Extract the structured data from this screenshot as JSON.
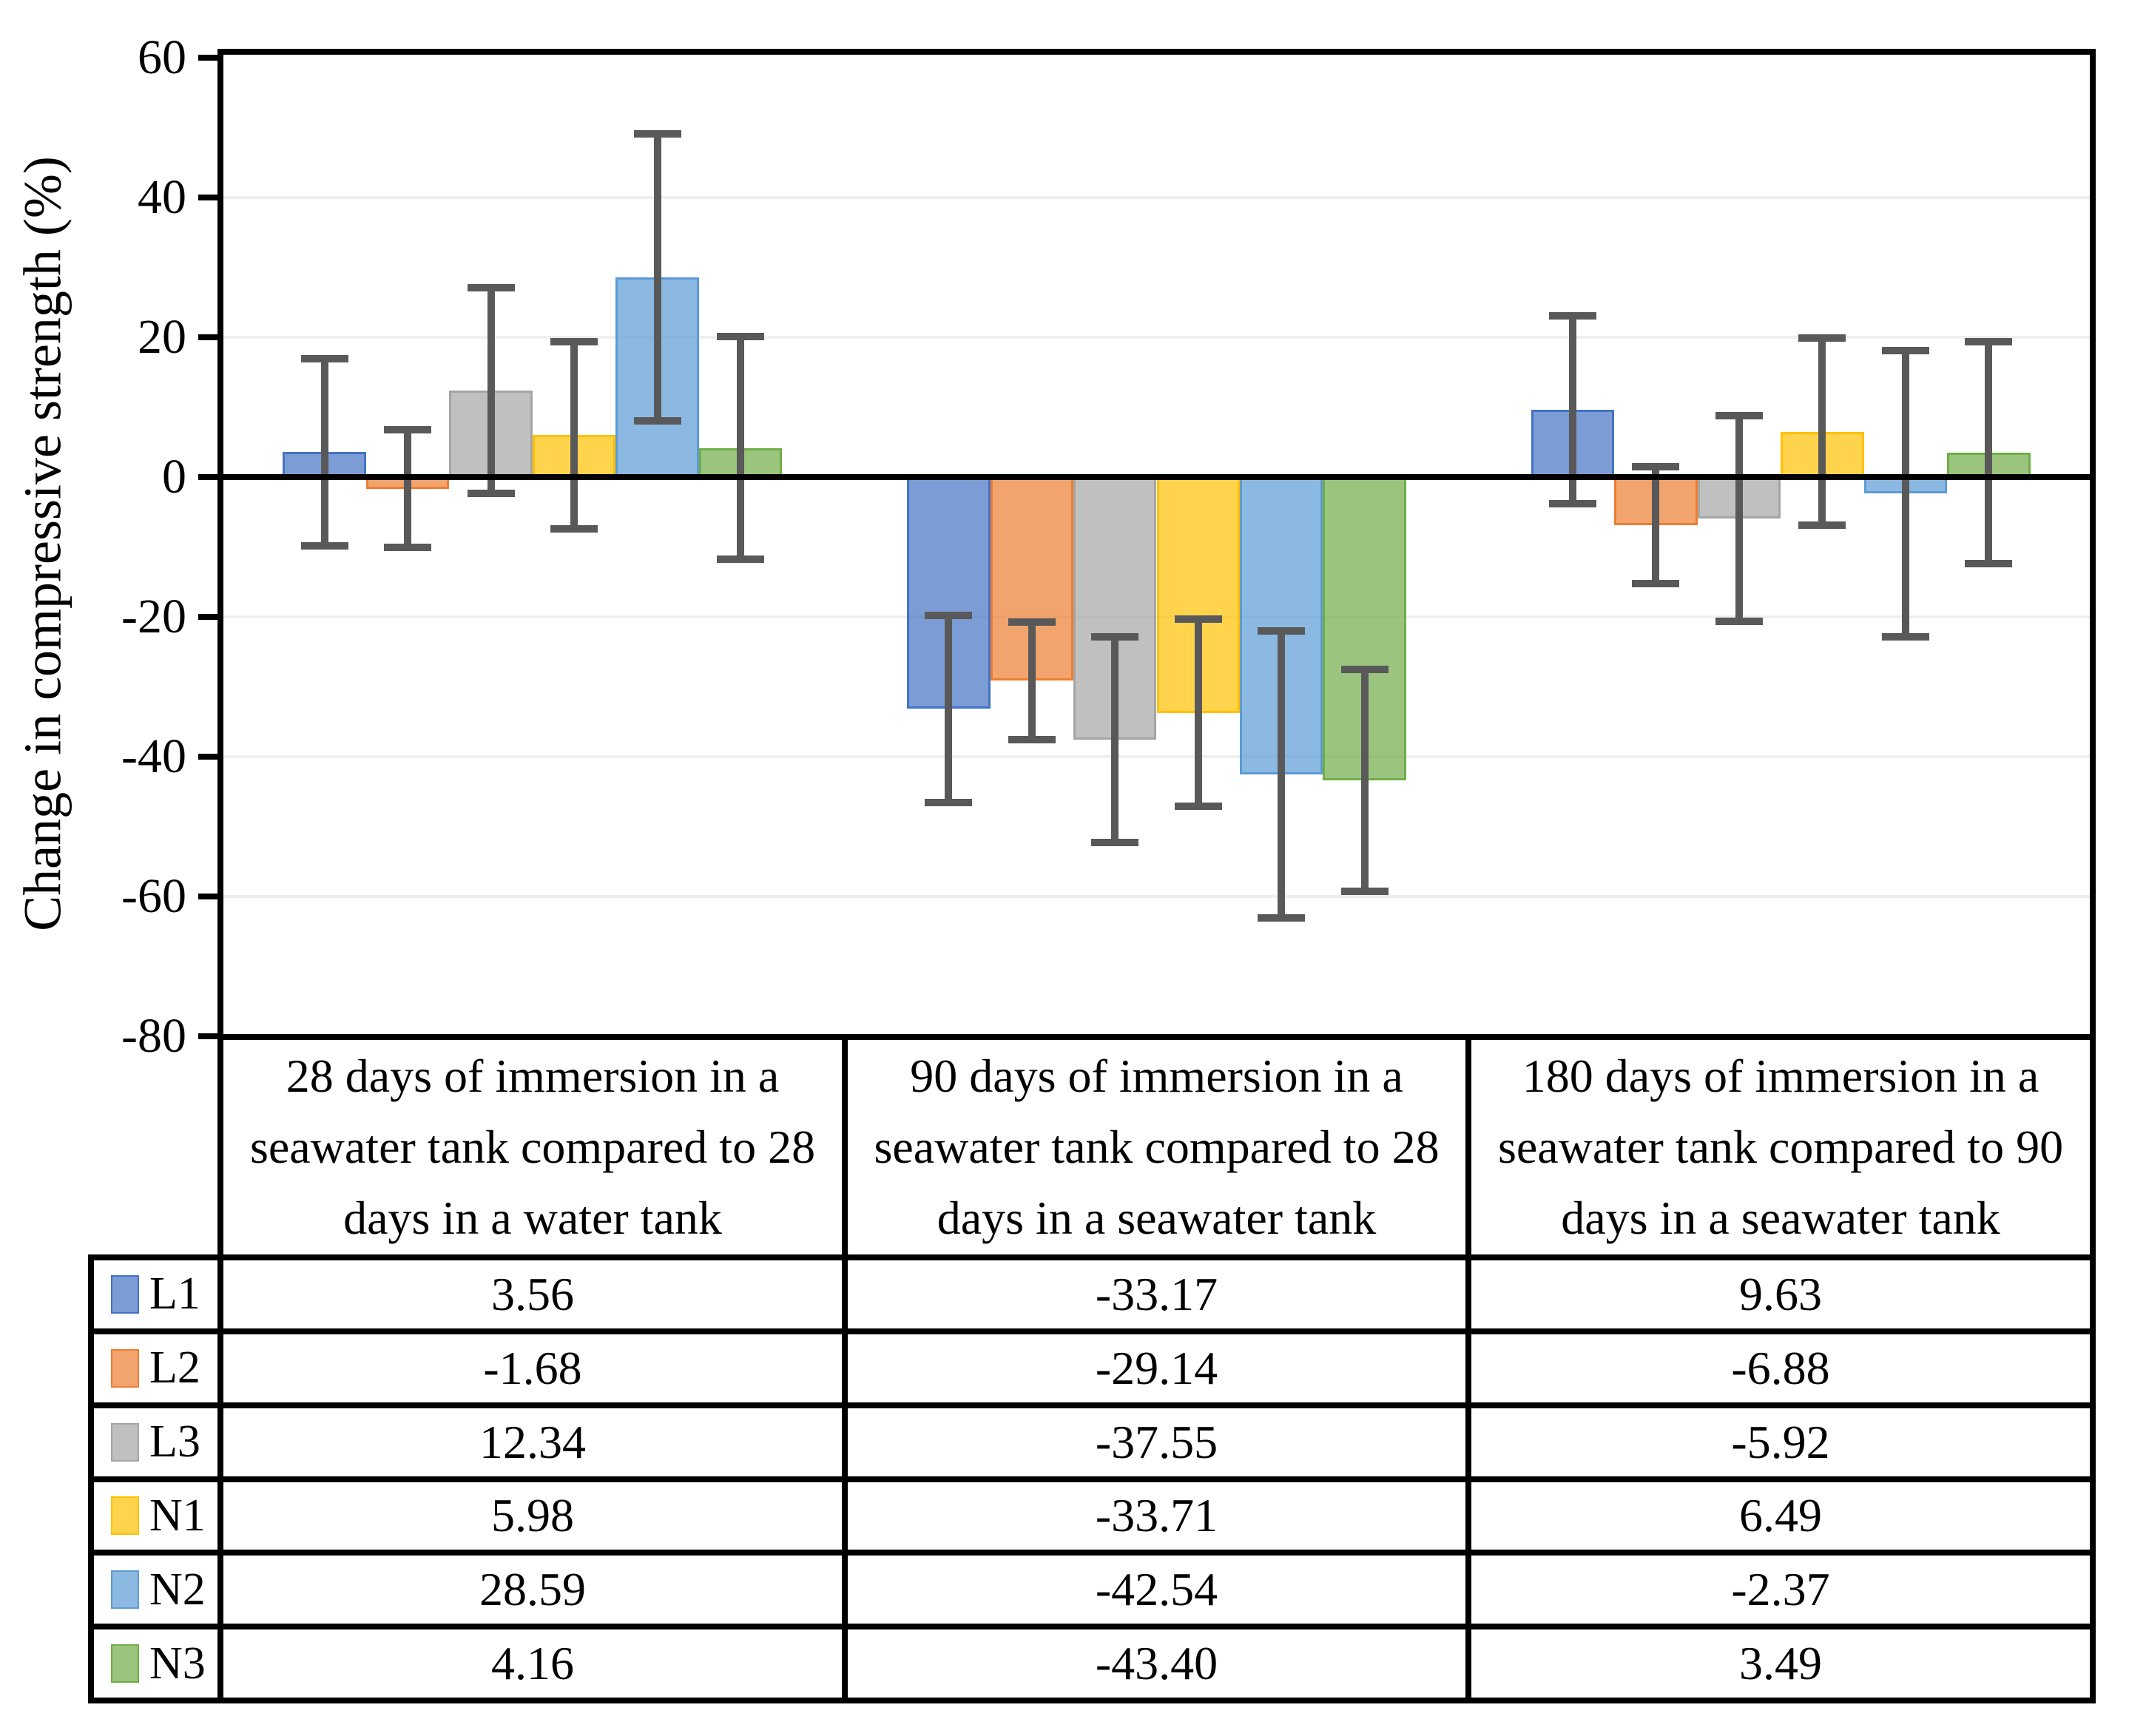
{
  "chart_data": {
    "type": "bar",
    "title": "",
    "ylabel": "Change in compressive strength (%)",
    "xlabel": "",
    "ylim": [
      -80,
      60
    ],
    "yticks": [
      60,
      40,
      20,
      0,
      -20,
      -40,
      -60,
      -80
    ],
    "grid": "horizontal-light",
    "legend_position": "table-left-column",
    "categories": [
      "28 days of immersion in a seawater tank compared to 28 days in a water tank",
      "90 days of immersion in a seawater tank compared to 28 days in a seawater tank",
      "180 days of immersion in a seawater tank compared to 90 days in a seawater tank"
    ],
    "series": [
      {
        "name": "L1",
        "values": [
          3.56,
          -33.17,
          9.63
        ],
        "error": 13.4,
        "color": "#4472C4",
        "fill": "rgba(68,114,196,0.7)"
      },
      {
        "name": "L2",
        "values": [
          -1.68,
          -29.14,
          -6.88
        ],
        "error": 8.4,
        "color": "#ED7D31",
        "fill": "rgba(237,125,49,0.7)"
      },
      {
        "name": "L3",
        "values": [
          12.34,
          -37.55,
          -5.92
        ],
        "error": 14.7,
        "color": "#A5A5A5",
        "fill": "rgba(165,165,165,0.7)"
      },
      {
        "name": "N1",
        "values": [
          5.98,
          -33.71,
          6.49
        ],
        "error": 13.4,
        "color": "#FFC000",
        "fill": "rgba(255,192,0,0.7)"
      },
      {
        "name": "N2",
        "values": [
          28.59,
          -42.54,
          -2.37
        ],
        "error": 20.5,
        "color": "#5B9BD5",
        "fill": "rgba(91,155,213,0.7)"
      },
      {
        "name": "N3",
        "values": [
          4.16,
          -43.4,
          3.49
        ],
        "error": 15.9,
        "color": "#70AD47",
        "fill": "rgba(112,173,71,0.7)"
      }
    ],
    "table_values": [
      [
        "3.56",
        "-33.17",
        "9.63"
      ],
      [
        "-1.68",
        "-29.14",
        "-6.88"
      ],
      [
        "12.34",
        "-37.55",
        "-5.92"
      ],
      [
        "5.98",
        "-33.71",
        "6.49"
      ],
      [
        "28.59",
        "-42.54",
        "-2.37"
      ],
      [
        "4.16",
        "-43.40",
        "3.49"
      ]
    ],
    "colors": {
      "axis": "#000000",
      "error_bar": "#595959",
      "gridline": "#EFEFEF",
      "background": "#FFFFFF"
    }
  }
}
